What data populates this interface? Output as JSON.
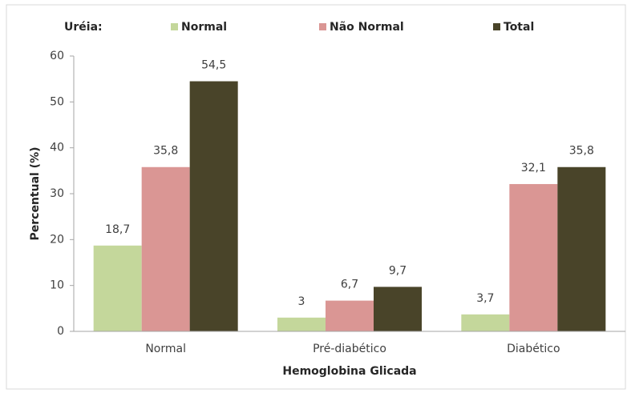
{
  "chart_data": {
    "type": "bar",
    "legend_title": "Uréia:",
    "y_label": "Percentual (%)",
    "x_label": "Hemoglobina Glicada",
    "categories": [
      "Normal",
      "Pré-diabético",
      "Diabético"
    ],
    "series": [
      {
        "name": "Normal",
        "color": "#c4d79b",
        "values": [
          18.7,
          3,
          3.7
        ],
        "value_labels": [
          "18,7",
          "3",
          "3,7"
        ]
      },
      {
        "name": "Não Normal",
        "color": "#da9694",
        "values": [
          35.8,
          6.7,
          32.1
        ],
        "value_labels": [
          "35,8",
          "6,7",
          "32,1"
        ]
      },
      {
        "name": "Total",
        "color": "#494429",
        "values": [
          54.5,
          9.7,
          35.8
        ],
        "value_labels": [
          "54,5",
          "9,7",
          "35,8"
        ]
      }
    ],
    "ylim": [
      0,
      60
    ],
    "yticks": [
      0,
      10,
      20,
      30,
      40,
      50,
      60
    ],
    "grid": false
  }
}
